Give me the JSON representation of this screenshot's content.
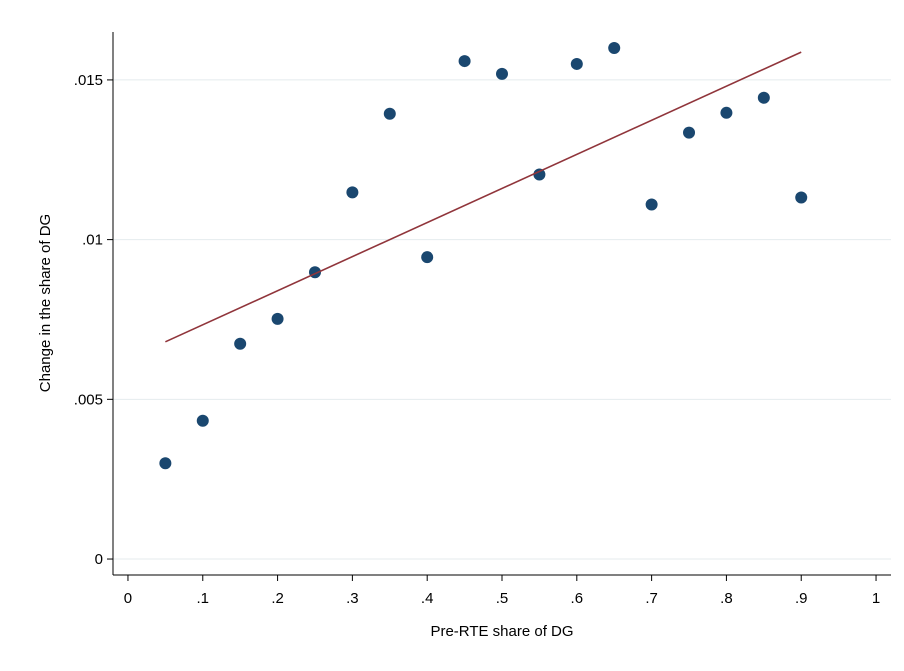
{
  "chart_data": {
    "type": "scatter",
    "x_label": "Pre-RTE share of DG",
    "y_label": "Change in the share of DG",
    "xlim": [
      -0.02,
      1.02
    ],
    "ylim": [
      -0.0005,
      0.0165
    ],
    "xticks": [
      0,
      {
        "value": 0.1,
        "label": ".1"
      },
      {
        "value": 0.2,
        "label": ".2"
      },
      {
        "value": 0.3,
        "label": ".3"
      },
      {
        "value": 0.4,
        "label": ".4"
      },
      {
        "value": 0.5,
        "label": ".5"
      },
      {
        "value": 0.6,
        "label": ".6"
      },
      {
        "value": 0.7,
        "label": ".7"
      },
      {
        "value": 0.8,
        "label": ".8"
      },
      {
        "value": 0.9,
        "label": ".9"
      },
      1
    ],
    "yticks": [
      0,
      {
        "value": 0.005,
        "label": ".005"
      },
      {
        "value": 0.01,
        "label": ".01"
      },
      {
        "value": 0.015,
        "label": ".015"
      }
    ],
    "grid": true,
    "series": [
      {
        "type": "scatter",
        "color": "#1a476f",
        "x": [
          0.05,
          0.1,
          0.15,
          0.2,
          0.25,
          0.3,
          0.35,
          0.4,
          0.45,
          0.5,
          0.55,
          0.6,
          0.65,
          0.7,
          0.75,
          0.8,
          0.85,
          0.9
        ],
        "values": [
          0.003,
          0.00433,
          0.00674,
          0.00752,
          0.00898,
          0.01148,
          0.01394,
          0.00945,
          0.01559,
          0.01519,
          0.01204,
          0.0155,
          0.016,
          0.0111,
          0.01335,
          0.01397,
          0.01444,
          0.01132
        ]
      },
      {
        "type": "line",
        "color": "#90353b",
        "x": [
          0.05,
          0.9
        ],
        "values": [
          0.0068,
          0.01587
        ]
      }
    ]
  }
}
